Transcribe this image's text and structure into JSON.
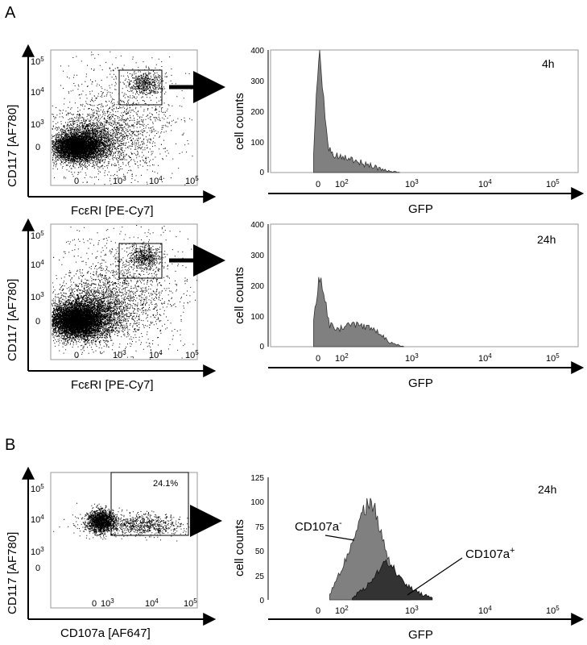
{
  "panels": {
    "a": "A",
    "b": "B"
  },
  "chart_data": [
    {
      "id": "A-top-scatter",
      "type": "scatter",
      "xlabel": "FcεRI [PE-Cy7]",
      "ylabel": "CD117 [AF780]",
      "x_ticks": [
        "0",
        "10^3",
        "10^4",
        "10^5"
      ],
      "y_ticks": [
        "0",
        "10^3",
        "10^4",
        "10^5"
      ],
      "gate": "rectangular gate on FcεRI+ CD117+ population (~10^3–10^4.2 x 10^3.6–10^4.6)"
    },
    {
      "id": "A-top-hist",
      "type": "area",
      "annotation": "4h",
      "xlabel": "GFP",
      "ylabel": "cell counts",
      "x_ticks": [
        "0",
        "10^2",
        "10^3",
        "10^4",
        "10^5"
      ],
      "y_ticks": [
        0,
        100,
        200,
        300,
        400
      ],
      "ylim": [
        0,
        400
      ],
      "x": [
        -30,
        -10,
        0,
        20,
        40,
        80,
        150,
        250,
        400,
        700
      ],
      "y": [
        60,
        320,
        390,
        260,
        90,
        55,
        40,
        25,
        10,
        0
      ]
    },
    {
      "id": "A-bottom-scatter",
      "type": "scatter",
      "xlabel": "FcεRI [PE-Cy7]",
      "ylabel": "CD117 [AF780]",
      "x_ticks": [
        "0",
        "10^3",
        "10^4",
        "10^5"
      ],
      "y_ticks": [
        "0",
        "10^3",
        "10^4",
        "10^5"
      ]
    },
    {
      "id": "A-bottom-hist",
      "type": "area",
      "annotation": "24h",
      "xlabel": "GFP",
      "ylabel": "cell counts",
      "x_ticks": [
        "0",
        "10^2",
        "10^3",
        "10^4",
        "10^5"
      ],
      "y_ticks": [
        0,
        100,
        200,
        300,
        400
      ],
      "ylim": [
        0,
        400
      ],
      "x": [
        -30,
        -10,
        0,
        20,
        50,
        100,
        180,
        300,
        500,
        800
      ],
      "y": [
        80,
        190,
        230,
        170,
        70,
        60,
        75,
        55,
        15,
        0
      ]
    },
    {
      "id": "B-scatter",
      "type": "scatter",
      "xlabel": "CD107a [AF647]",
      "ylabel": "CD117 [AF780]",
      "x_ticks": [
        "0",
        "10^3",
        "10^4",
        "10^5"
      ],
      "y_ticks": [
        "0",
        "10^3",
        "10^4",
        "10^5"
      ],
      "gate_percent": "24.1%"
    },
    {
      "id": "B-hist",
      "type": "area",
      "annotation": "24h",
      "xlabel": "GFP",
      "ylabel": "cell counts",
      "x_ticks": [
        "0",
        "10^2",
        "10^3",
        "10^4",
        "10^5"
      ],
      "y_ticks": [
        0,
        25,
        50,
        75,
        100,
        125
      ],
      "ylim": [
        0,
        125
      ],
      "series": [
        {
          "name": "CD107a-",
          "x": [
            50,
            100,
            150,
            200,
            250,
            300,
            400,
            600,
            1000
          ],
          "y": [
            5,
            30,
            60,
            85,
            100,
            95,
            60,
            25,
            5
          ]
        },
        {
          "name": "CD107a+",
          "x": [
            150,
            250,
            350,
            450,
            600,
            800,
            1200,
            2000
          ],
          "y": [
            2,
            15,
            30,
            38,
            30,
            18,
            8,
            2
          ]
        }
      ]
    }
  ],
  "labels": {
    "xA": "FcεRI [PE-Cy7]",
    "yA": "CD117 [AF780]",
    "xB": "CD107a [AF647]",
    "gfp": "GFP",
    "counts": "cell counts",
    "t4": "4h",
    "t24": "24h",
    "pct": "24.1%",
    "cdneg": "CD107a",
    "cdpos": "CD107a",
    "neg": "-",
    "pos": "+"
  }
}
